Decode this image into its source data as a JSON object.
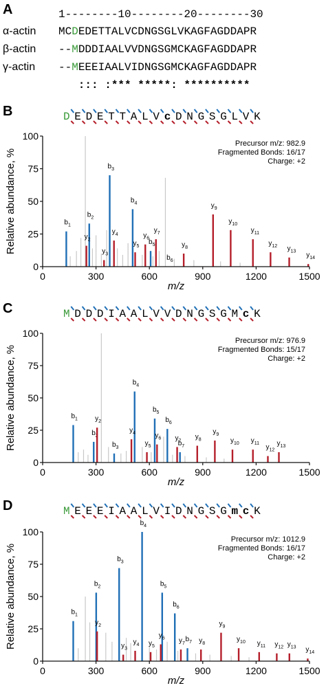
{
  "alignment": {
    "letter": "A",
    "ruler": "1--------10--------20--------30",
    "rows": [
      {
        "label": "α-actin",
        "prefix": "MC",
        "highlight": "D",
        "rest": "EDETTALVCDNGSGLVKAGFAGDDAPR"
      },
      {
        "label": "β-actin",
        "prefix": "--",
        "highlight": "M",
        "rest": "DDDIAALVVDNGSGMCKAGFAGDDAPR"
      },
      {
        "label": "γ-actin",
        "prefix": "--",
        "highlight": "M",
        "rest": "EEEIAALVIDNGSGMCKAGFAGDDAPR"
      }
    ],
    "conservation": "   ::: :*** *****: **********"
  },
  "colors": {
    "b_ion": "#1f6fb6",
    "y_ion": "#b41e2a",
    "noise": "#c8c8c8",
    "highlight": "#3a9a3a"
  },
  "chart_data": [
    {
      "type": "bar",
      "panel": "B",
      "sequence": [
        "D",
        "E",
        "D",
        "E",
        "T",
        "T",
        "A",
        "L",
        "V",
        "c",
        "D",
        "N",
        "G",
        "S",
        "G",
        "L",
        "V",
        "K"
      ],
      "bold_residues": [
        9
      ],
      "green_residues": [
        0
      ],
      "info": [
        "Precursor m/z: 982.9",
        "Fragmented Bonds: 16/17",
        "Charge: +2"
      ],
      "xlabel": "m/z",
      "ylabel": "Relative abundance, %",
      "xlim": [
        0,
        1500
      ],
      "ylim": [
        0,
        100
      ],
      "xticks": [
        0,
        300,
        600,
        900,
        1200,
        1500
      ],
      "yticks": [
        0,
        25,
        50,
        75,
        100
      ],
      "b_ions": [
        {
          "label": "b",
          "n": "1",
          "mz": 133,
          "y": 27
        },
        {
          "label": "b",
          "n": "2",
          "mz": 262,
          "y": 33
        },
        {
          "label": "b",
          "n": "3",
          "mz": 377,
          "y": 70
        },
        {
          "label": "b",
          "n": "4",
          "mz": 506,
          "y": 44
        },
        {
          "label": "b",
          "n": "5",
          "mz": 607,
          "y": 12
        },
        {
          "label": "b",
          "n": "6",
          "mz": 708,
          "y": 0
        }
      ],
      "y_ions": [
        {
          "label": "y",
          "n": "2",
          "mz": 246,
          "y": 16
        },
        {
          "label": "y",
          "n": "3",
          "mz": 345,
          "y": 5
        },
        {
          "label": "y",
          "n": "4",
          "mz": 401,
          "y": 20
        },
        {
          "label": "y",
          "n": "5",
          "mz": 520,
          "y": 11
        },
        {
          "label": "y",
          "n": "6",
          "mz": 577,
          "y": 17
        },
        {
          "label": "y",
          "n": "7",
          "mz": 637,
          "y": 21
        },
        {
          "label": "y",
          "n": "8",
          "mz": 793,
          "y": 10
        },
        {
          "label": "y",
          "n": "9",
          "mz": 958,
          "y": 40
        },
        {
          "label": "y",
          "n": "10",
          "mz": 1057,
          "y": 28
        },
        {
          "label": "y",
          "n": "11",
          "mz": 1182,
          "y": 21
        },
        {
          "label": "y",
          "n": "12",
          "mz": 1281,
          "y": 11
        },
        {
          "label": "y",
          "n": "13",
          "mz": 1386,
          "y": 7
        },
        {
          "label": "y",
          "n": "14",
          "mz": 1493,
          "y": 2
        }
      ],
      "noise": [
        {
          "mz": 155,
          "y": 8
        },
        {
          "mz": 190,
          "y": 12
        },
        {
          "mz": 215,
          "y": 22
        },
        {
          "mz": 240,
          "y": 100
        },
        {
          "mz": 280,
          "y": 14
        },
        {
          "mz": 300,
          "y": 24
        },
        {
          "mz": 330,
          "y": 10
        },
        {
          "mz": 360,
          "y": 28
        },
        {
          "mz": 420,
          "y": 14
        },
        {
          "mz": 450,
          "y": 9
        },
        {
          "mz": 480,
          "y": 18
        },
        {
          "mz": 560,
          "y": 9
        },
        {
          "mz": 620,
          "y": 8
        },
        {
          "mz": 655,
          "y": 12
        },
        {
          "mz": 690,
          "y": 68
        },
        {
          "mz": 740,
          "y": 6
        },
        {
          "mz": 850,
          "y": 5
        },
        {
          "mz": 1000,
          "y": 4
        },
        {
          "mz": 1110,
          "y": 3
        }
      ]
    },
    {
      "type": "bar",
      "panel": "C",
      "sequence": [
        "M",
        "D",
        "D",
        "D",
        "I",
        "A",
        "A",
        "L",
        "V",
        "V",
        "D",
        "N",
        "G",
        "S",
        "G",
        "M",
        "c",
        "K"
      ],
      "bold_residues": [
        16
      ],
      "green_residues": [
        0
      ],
      "info": [
        "Precursor m/z: 976.9",
        "Fragmented Bonds: 15/17",
        "Charge: +2"
      ],
      "xlabel": "m/z",
      "ylabel": "Relative abundance, %",
      "xlim": [
        0,
        1500
      ],
      "ylim": [
        0,
        100
      ],
      "xticks": [
        0,
        300,
        600,
        900,
        1200,
        1500
      ],
      "yticks": [
        0,
        25,
        50,
        75,
        100
      ],
      "b_ions": [
        {
          "label": "b",
          "n": "1",
          "mz": 172,
          "y": 29
        },
        {
          "label": "b",
          "n": "2",
          "mz": 287,
          "y": 16
        },
        {
          "label": "b",
          "n": "3",
          "mz": 402,
          "y": 7
        },
        {
          "label": "b",
          "n": "4",
          "mz": 517,
          "y": 55
        },
        {
          "label": "b",
          "n": "5",
          "mz": 630,
          "y": 34
        },
        {
          "label": "b",
          "n": "6",
          "mz": 701,
          "y": 26
        },
        {
          "label": "b",
          "n": "7",
          "mz": 772,
          "y": 8
        }
      ],
      "y_ions": [
        {
          "label": "y",
          "n": "2",
          "mz": 306,
          "y": 27
        },
        {
          "label": "y",
          "n": "4",
          "mz": 499,
          "y": 18
        },
        {
          "label": "y",
          "n": "5",
          "mz": 586,
          "y": 8
        },
        {
          "label": "y",
          "n": "6",
          "mz": 643,
          "y": 14
        },
        {
          "label": "y",
          "n": "7",
          "mz": 756,
          "y": 12
        },
        {
          "label": "y",
          "n": "8",
          "mz": 869,
          "y": 13
        },
        {
          "label": "y",
          "n": "9",
          "mz": 968,
          "y": 17
        },
        {
          "label": "y",
          "n": "10",
          "mz": 1067,
          "y": 10
        },
        {
          "label": "y",
          "n": "11",
          "mz": 1182,
          "y": 10
        },
        {
          "label": "y",
          "n": "12",
          "mz": 1266,
          "y": 5
        },
        {
          "label": "y",
          "n": "13",
          "mz": 1328,
          "y": 8
        }
      ],
      "noise": [
        {
          "mz": 200,
          "y": 8
        },
        {
          "mz": 230,
          "y": 10
        },
        {
          "mz": 255,
          "y": 6
        },
        {
          "mz": 330,
          "y": 100
        },
        {
          "mz": 370,
          "y": 12
        },
        {
          "mz": 440,
          "y": 7
        },
        {
          "mz": 470,
          "y": 9
        },
        {
          "mz": 560,
          "y": 12
        },
        {
          "mz": 610,
          "y": 8
        },
        {
          "mz": 680,
          "y": 20
        },
        {
          "mz": 730,
          "y": 6
        },
        {
          "mz": 800,
          "y": 5
        },
        {
          "mz": 920,
          "y": 4
        },
        {
          "mz": 1020,
          "y": 3
        }
      ]
    },
    {
      "type": "bar",
      "panel": "D",
      "sequence": [
        "M",
        "E",
        "E",
        "E",
        "I",
        "A",
        "A",
        "L",
        "V",
        "I",
        "D",
        "N",
        "G",
        "S",
        "G",
        "m",
        "c",
        "K"
      ],
      "bold_residues": [
        15,
        16
      ],
      "green_residues": [
        0
      ],
      "info": [
        "Precursor m/z: 1012.9",
        "Fragmented Bonds: 16/17",
        "Charge: +2"
      ],
      "xlabel": "m/z",
      "ylabel": "Relative abundance, %",
      "xlim": [
        0,
        1500
      ],
      "ylim": [
        0,
        100
      ],
      "xticks": [
        0,
        300,
        600,
        900,
        1200,
        1500
      ],
      "yticks": [
        0,
        25,
        50,
        75,
        100
      ],
      "b_ions": [
        {
          "label": "b",
          "n": "1",
          "mz": 172,
          "y": 31
        },
        {
          "label": "b",
          "n": "2",
          "mz": 301,
          "y": 53
        },
        {
          "label": "b",
          "n": "3",
          "mz": 430,
          "y": 72
        },
        {
          "label": "b",
          "n": "4",
          "mz": 559,
          "y": 100
        },
        {
          "label": "b",
          "n": "5",
          "mz": 672,
          "y": 53
        },
        {
          "label": "b",
          "n": "6",
          "mz": 743,
          "y": 37
        },
        {
          "label": "b",
          "n": "7",
          "mz": 814,
          "y": 10
        }
      ],
      "y_ions": [
        {
          "label": "y",
          "n": "2",
          "mz": 306,
          "y": 23
        },
        {
          "label": "y",
          "n": "3",
          "mz": 453,
          "y": 5
        },
        {
          "label": "y",
          "n": "4",
          "mz": 520,
          "y": 8
        },
        {
          "label": "y",
          "n": "5",
          "mz": 607,
          "y": 7
        },
        {
          "label": "y",
          "n": "6",
          "mz": 664,
          "y": 13
        },
        {
          "label": "y",
          "n": "7",
          "mz": 777,
          "y": 9
        },
        {
          "label": "y",
          "n": "8",
          "mz": 890,
          "y": 9
        },
        {
          "label": "y",
          "n": "9",
          "mz": 1003,
          "y": 22
        },
        {
          "label": "y",
          "n": "10",
          "mz": 1102,
          "y": 10
        },
        {
          "label": "y",
          "n": "11",
          "mz": 1217,
          "y": 7
        },
        {
          "label": "y",
          "n": "12",
          "mz": 1316,
          "y": 6
        },
        {
          "label": "y",
          "n": "13",
          "mz": 1387,
          "y": 6
        },
        {
          "label": "y",
          "n": "14",
          "mz": 1490,
          "y": 2
        }
      ],
      "noise": [
        {
          "mz": 200,
          "y": 10
        },
        {
          "mz": 240,
          "y": 50
        },
        {
          "mz": 265,
          "y": 30
        },
        {
          "mz": 355,
          "y": 22
        },
        {
          "mz": 390,
          "y": 15
        },
        {
          "mz": 470,
          "y": 18
        },
        {
          "mz": 495,
          "y": 14
        },
        {
          "mz": 600,
          "y": 12
        },
        {
          "mz": 640,
          "y": 9
        },
        {
          "mz": 700,
          "y": 15
        },
        {
          "mz": 760,
          "y": 8
        },
        {
          "mz": 860,
          "y": 6
        },
        {
          "mz": 940,
          "y": 5
        },
        {
          "mz": 1060,
          "y": 4
        },
        {
          "mz": 1160,
          "y": 3
        }
      ]
    }
  ]
}
